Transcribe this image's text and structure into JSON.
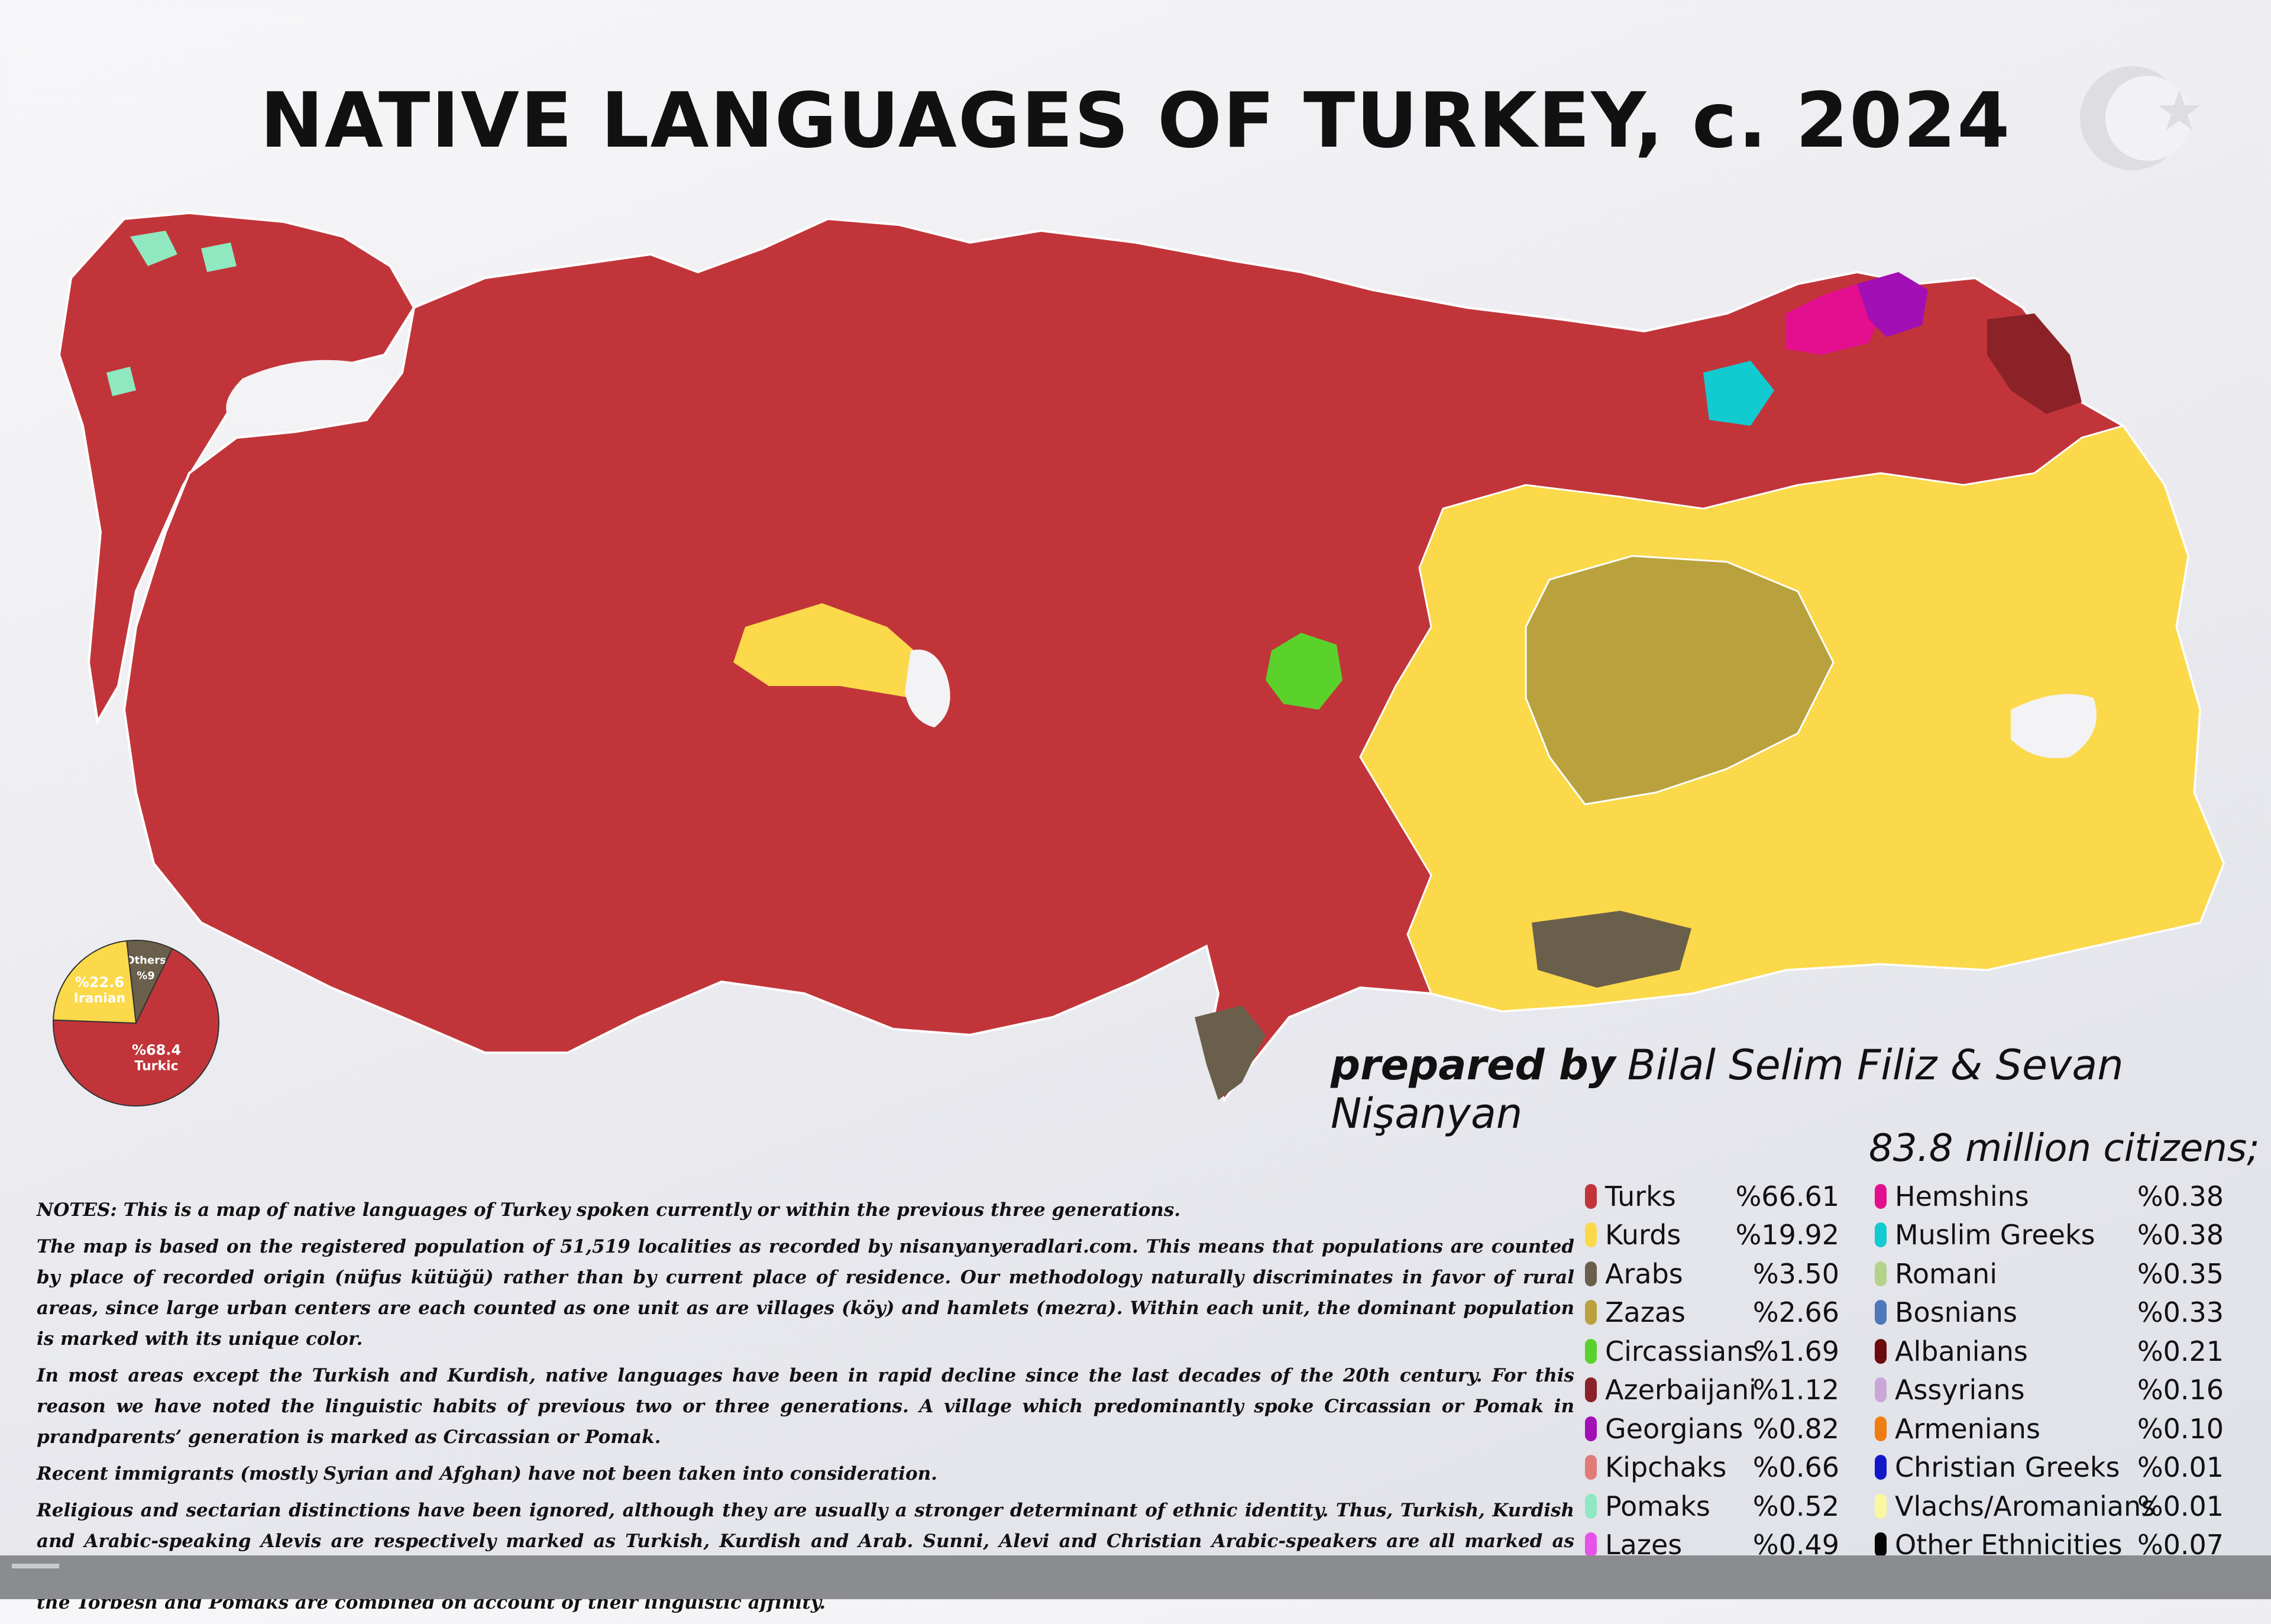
{
  "title": "NATIVE LANGUAGES OF TURKEY, c. 2024",
  "logo_icon": "crescent-star-icon",
  "prepared_by_label": "prepared by",
  "authors": "Bilal Selim Filiz & Sevan Nişanyan",
  "citizens": "83.8 million citizens;",
  "pie": {
    "slices": [
      {
        "label": "Turkic",
        "pct_label": "%68.4",
        "value": 68.4,
        "color": "#c1353a"
      },
      {
        "label": "Iranian",
        "pct_label": "%22.6",
        "value": 22.6,
        "color": "#fbd94a"
      },
      {
        "label": "Others",
        "pct_label": "%9",
        "value": 9.0,
        "color": "#6a5f4b"
      }
    ]
  },
  "notes": [
    "NOTES: This is a map of native languages of Turkey spoken currently or within the previous three generations.",
    "The map is based on the registered population of 51,519 localities as recorded by nisanyanyeradlari.com. This means that populations are counted by place of recorded origin (nüfus kütüğü) rather than by current place of residence. Our methodology naturally discriminates in favor of rural areas, since large urban centers are each counted as one unit as are villages (köy) and hamlets (mezra). Within each unit, the dominant population is marked with its unique color.",
    "In most areas except the Turkish and Kurdish, native languages have been in rapid decline since the last decades of the 20th century. For this reason we have noted the linguistic habits of previous two or three generations. A village which predominantly spoke Circassian or Pomak in prandparents’ generation is marked as Circassian or Pomak.",
    "Recent immigrants (mostly Syrian and Afghan) have not been taken into consideration.",
    "Religious and sectarian distinctions have been ignored, although they are usually a stronger determinant of ethnic identity. Thus, Turkish, Kurdish and Arabic-speaking Alevis are respectively marked as Turkish, Kurdish and Arab. Sunni, Alevi and Christian Arabic-speakers are all marked as Arab. Yezidi Kurds are marked as Kurdish. Three Balkan immigrant communities (Albanian, Bosnian and Pomak-Torbesh) are shown separately, but the Torbesh and Pomaks are combined on account of their linguistic affinity."
  ],
  "legend": {
    "left": [
      {
        "name": "Turks",
        "pct": "%66.61",
        "color": "#c1353a"
      },
      {
        "name": "Kurds",
        "pct": "%19.92",
        "color": "#fbd94a"
      },
      {
        "name": "Arabs",
        "pct": "%3.50",
        "color": "#6a5f4b"
      },
      {
        "name": "Zazas",
        "pct": "%2.66",
        "color": "#b9a23d"
      },
      {
        "name": "Circassians",
        "pct": "%1.69",
        "color": "#5bd12c"
      },
      {
        "name": "Azerbaijani",
        "pct": "%1.12",
        "color": "#8b2227"
      },
      {
        "name": "Georgians",
        "pct": "%0.82",
        "color": "#a20fb5"
      },
      {
        "name": "Kipchaks",
        "pct": "%0.66",
        "color": "#e07b78"
      },
      {
        "name": "Pomaks",
        "pct": "%0.52",
        "color": "#8fe8c0"
      },
      {
        "name": "Lazes",
        "pct": "%0.49",
        "color": "#e653e8"
      }
    ],
    "right": [
      {
        "name": "Hemshins",
        "pct": "%0.38",
        "color": "#e40f8e"
      },
      {
        "name": "Muslim Greeks",
        "pct": "%0.38",
        "color": "#12cbd1"
      },
      {
        "name": "Romani",
        "pct": "%0.35",
        "color": "#b4d28a"
      },
      {
        "name": "Bosnians",
        "pct": "%0.33",
        "color": "#4e78b8"
      },
      {
        "name": "Albanians",
        "pct": "%0.21",
        "color": "#6b0b0e"
      },
      {
        "name": "Assyrians",
        "pct": "%0.16",
        "color": "#c9a8d8"
      },
      {
        "name": "Armenians",
        "pct": "%0.10",
        "color": "#f07d12"
      },
      {
        "name": "Christian Greeks",
        "pct": "%0.01",
        "color": "#1218c8"
      },
      {
        "name": "Vlachs/Aromanians",
        "pct": "%0.01",
        "color": "#fbf6a0"
      },
      {
        "name": "Other Ethnicities",
        "pct": "%0.07",
        "color": "#050505"
      }
    ]
  }
}
